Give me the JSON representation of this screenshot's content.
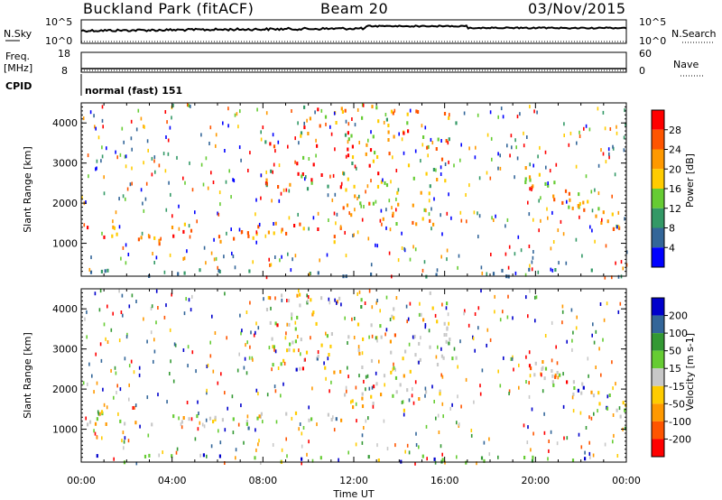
{
  "header": {
    "station": "Buckland Park (fitACF)",
    "beam": "Beam 20",
    "date": "03/Nov/2015"
  },
  "panels": {
    "nsky": {
      "label": "N.Sky",
      "tick_top": "10^5",
      "tick_bottom": "10^0"
    },
    "nsearch": {
      "label": "N.Search",
      "tick_top": "10^5",
      "tick_bottom": "10^0"
    },
    "freq": {
      "label_line1": "Freq.",
      "label_line2": "[MHz]",
      "tick_top": "18",
      "tick_bottom": "8"
    },
    "nave": {
      "label": "Nave",
      "tick_top": "60",
      "tick_bottom": "0"
    },
    "cpid": {
      "label": "CPID",
      "value": "normal (fast) 151"
    }
  },
  "power_panel": {
    "ylabel": "Slant Range [km]",
    "colorbar_label": "Power [dB]",
    "colorbar_ticks": [
      "28",
      "24",
      "20",
      "16",
      "12",
      "8",
      "4"
    ],
    "colors": [
      "#ff0000",
      "#ff5500",
      "#ff9900",
      "#ffcc00",
      "#66cc33",
      "#339966",
      "#336699",
      "#0000ff"
    ]
  },
  "velocity_panel": {
    "ylabel": "Slant Range [km]",
    "colorbar_label": "Velocity [m s-1]",
    "colorbar_ticks": [
      "200",
      "100",
      "50",
      "15",
      "-15",
      "-50",
      "-100",
      "-200"
    ],
    "colors": [
      "#0000cc",
      "#336699",
      "#339933",
      "#66cc33",
      "#c8c8c8",
      "#ffcc00",
      "#ff9900",
      "#ff5500",
      "#ff0000"
    ]
  },
  "chart_data": {
    "type": "heatmap",
    "xlabel": "Time UT",
    "ylabel": "Slant Range [km]",
    "x_ticks": [
      "00:00",
      "04:00",
      "08:00",
      "12:00",
      "16:00",
      "20:00",
      "00:00"
    ],
    "y_ticks": [
      1000,
      2000,
      3000,
      4000
    ],
    "xlim_hours": [
      0,
      24
    ],
    "ylim_km": [
      180,
      4500
    ],
    "power_regions": [
      {
        "t0": 0,
        "t1": 11.5,
        "r0": 1100,
        "r1": 1700,
        "level": "orange-red"
      },
      {
        "t0": 11.5,
        "t1": 16,
        "r0": 1500,
        "r1": 2400,
        "level": "orange"
      },
      {
        "t0": 8,
        "t1": 16.5,
        "r0": 2400,
        "r1": 4500,
        "level": "mixed"
      },
      {
        "t0": 19.5,
        "t1": 24,
        "r0": 1300,
        "r1": 2800,
        "level": "orange"
      },
      {
        "t0": 0,
        "t1": 24,
        "r0": 180,
        "r1": 400,
        "level": "blue"
      }
    ]
  },
  "x_axis": {
    "label": "Time UT",
    "ticks": [
      "00:00",
      "04:00",
      "08:00",
      "12:00",
      "16:00",
      "20:00",
      "00:00"
    ]
  },
  "y_axis": {
    "ticks": [
      "1000",
      "2000",
      "3000",
      "4000"
    ]
  }
}
